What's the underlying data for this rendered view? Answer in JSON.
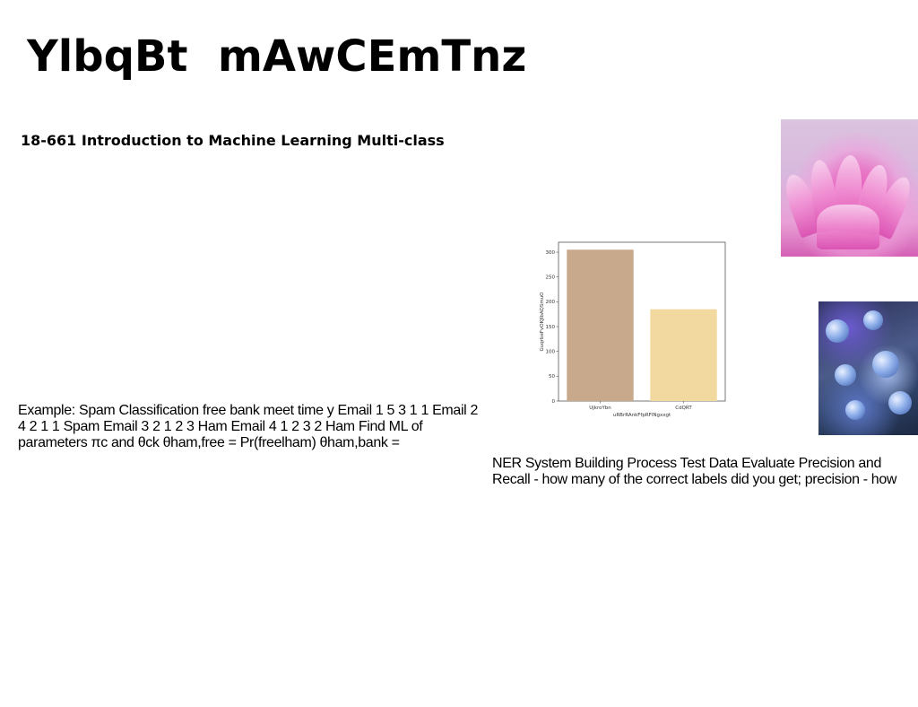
{
  "header": {
    "title": "YlbqBt  mAwCEmTnz",
    "subtitle": "18-661 Introduction to Machine Learning Multi-class"
  },
  "content": {
    "left_paragraph": "Example: Spam Classification free bank meet time y Email 1 5 3 1 1 Email 2 4 2 1 1 Spam Email 3 2 1 2 3 Ham Email 4 1 2 3 2 Ham Find ML of parameters πc and θck θham,free = Pr(freelham) θham,bank =",
    "right_paragraph": "NER System Building Process Test Data Evaluate Precision and Recall - how many of the correct labels did you get; precision - how many"
  },
  "images": {
    "top_right": "pink-abstract-photo",
    "bottom_right": "blue-figurines-photo"
  },
  "chart_data": {
    "type": "bar",
    "categories": [
      "UjkroYbn",
      "CdQRT"
    ],
    "values": [
      305,
      185
    ],
    "colors": [
      "#c8a98c",
      "#f2d9a0"
    ],
    "xlabel": "uRBrRAnkFfpRFlNgxxgt",
    "ylabel": "GuqrbeFvOKJlbAQSmuO",
    "ylim": [
      0,
      320
    ],
    "yticks": [
      0,
      50,
      100,
      150,
      200,
      250,
      300
    ],
    "grid": false
  }
}
